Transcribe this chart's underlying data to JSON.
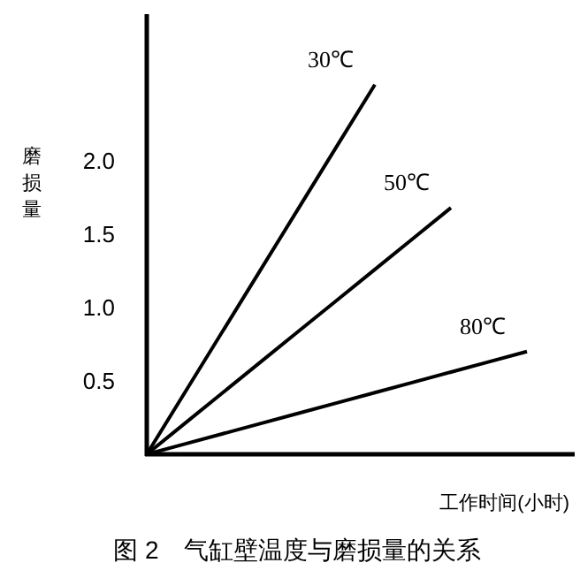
{
  "chart_data": {
    "type": "line",
    "title": "图 2　气缸壁温度与磨损量的关系",
    "xlabel": "工作时间(小时)",
    "ylabel": "磨损量",
    "categories": [
      null,
      null,
      null,
      null,
      null,
      null,
      null,
      null,
      null,
      null,
      null,
      null
    ],
    "ylim": [
      0,
      3
    ],
    "yticks": [
      {
        "value": 0.5,
        "label": "0.5"
      },
      {
        "value": 1,
        "label": "1.0"
      },
      {
        "value": 1.5,
        "label": "1.5"
      },
      {
        "value": 2,
        "label": "2.0"
      }
    ],
    "tick_labels": "y",
    "grid": false,
    "marker": "none",
    "line_style": "solid",
    "series": [
      {
        "name": "30℃",
        "color": "#000000",
        "values": [
          0,
          0.42,
          0.84,
          1.26,
          1.68,
          2.1,
          2.52,
          null,
          null,
          null,
          null,
          null
        ]
      },
      {
        "name": "50℃",
        "color": "#000000",
        "values": [
          0,
          0.21,
          0.42,
          0.63,
          0.84,
          1.05,
          1.26,
          1.47,
          1.68,
          null,
          null,
          null
        ]
      },
      {
        "name": "80℃",
        "color": "#000000",
        "values": [
          0,
          0.07,
          0.14,
          0.21,
          0.28,
          0.35,
          0.42,
          0.49,
          0.56,
          0.63,
          0.7,
          null
        ]
      }
    ]
  }
}
